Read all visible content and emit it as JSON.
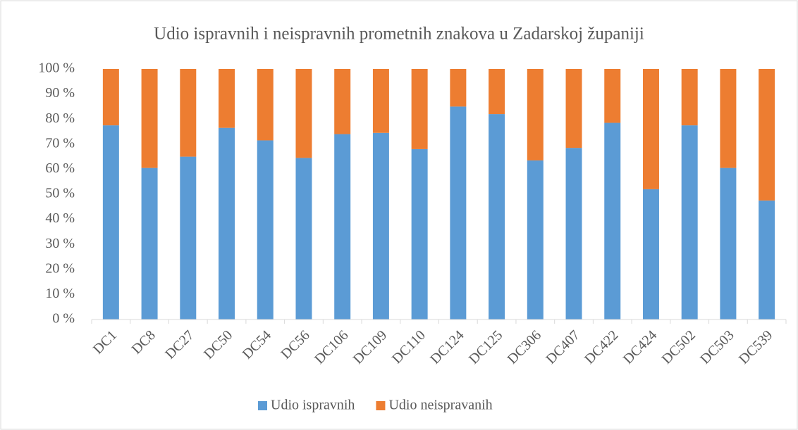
{
  "chart_data": {
    "type": "stacked_bar",
    "title": "Udio ispravnih i neispravnih prometnih znakova u Zadarskoj županiji",
    "categories": [
      "DC1",
      "DC8",
      "DC27",
      "DC50",
      "DC54",
      "DC56",
      "DC106",
      "DC109",
      "DC110",
      "DC124",
      "DC125",
      "DC306",
      "DC407",
      "DC422",
      "DC424",
      "DC502",
      "DC503",
      "DC539"
    ],
    "series": [
      {
        "name": "Udio ispravnih",
        "color": "#5b9bd5",
        "values": [
          77.5,
          60.5,
          65,
          76.5,
          71.5,
          64.5,
          74,
          74.5,
          68,
          85,
          82,
          63.5,
          68.5,
          78.5,
          52,
          77.5,
          60.5,
          47.5
        ]
      },
      {
        "name": "Udio neispravanih",
        "color": "#ed7d31",
        "values": [
          22.5,
          39.5,
          35,
          23.5,
          28.5,
          35.5,
          26,
          25.5,
          32,
          15,
          18,
          36.5,
          31.5,
          21.5,
          48,
          22.5,
          39.5,
          52.5
        ]
      }
    ],
    "ylim": [
      0,
      100
    ],
    "yticks": [
      {
        "value": 0,
        "label": "0 %"
      },
      {
        "value": 10,
        "label": "10 %"
      },
      {
        "value": 20,
        "label": "20 %"
      },
      {
        "value": 30,
        "label": "30 %"
      },
      {
        "value": 40,
        "label": "40 %"
      },
      {
        "value": 50,
        "label": "50 %"
      },
      {
        "value": 60,
        "label": "60 %"
      },
      {
        "value": 70,
        "label": "70 %"
      },
      {
        "value": 80,
        "label": "80 %"
      },
      {
        "value": 90,
        "label": "90 %"
      },
      {
        "value": 100,
        "label": "100 %"
      }
    ],
    "grid": false,
    "legend": "bottom"
  }
}
